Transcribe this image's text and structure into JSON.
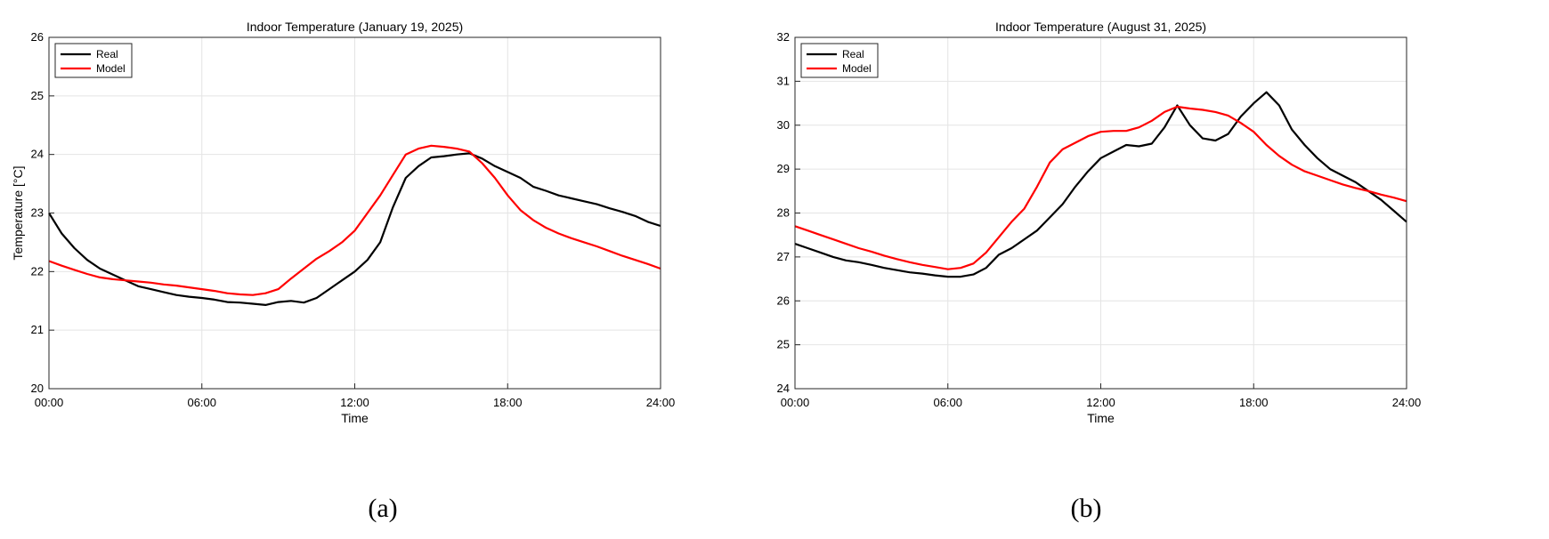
{
  "colors": {
    "real": "#000000",
    "model": "#ff0000",
    "grid": "#e4e4e4"
  },
  "chart_data": [
    {
      "type": "line",
      "caption": "(a)",
      "title": "Indoor Temperature (January 19, 2025)",
      "xlabel": "Time",
      "ylabel": "Temperature [°C]",
      "xlim": [
        0,
        24
      ],
      "ylim": [
        20,
        26
      ],
      "xticks": [
        0,
        6,
        12,
        18,
        24
      ],
      "xtick_labels": [
        "00:00",
        "06:00",
        "12:00",
        "18:00",
        "24:00"
      ],
      "yticks": [
        20,
        21,
        22,
        23,
        24,
        25,
        26
      ],
      "ytick_labels": [
        "20",
        "21",
        "22",
        "23",
        "24",
        "25",
        "26"
      ],
      "grid": true,
      "legend_position": "top-left",
      "series": [
        {
          "name": "Real",
          "color": "#000000",
          "x": [
            0,
            0.5,
            1,
            1.5,
            2,
            2.5,
            3,
            3.5,
            4,
            4.5,
            5,
            5.5,
            6,
            6.5,
            7,
            7.5,
            8,
            8.5,
            9,
            9.5,
            10,
            10.5,
            11,
            11.5,
            12,
            12.5,
            13,
            13.5,
            14,
            14.5,
            15,
            15.5,
            16,
            16.5,
            17,
            17.5,
            18,
            18.5,
            19,
            19.5,
            20,
            20.5,
            21,
            21.5,
            22,
            22.5,
            23,
            23.5,
            24
          ],
          "y": [
            23.0,
            22.65,
            22.4,
            22.2,
            22.05,
            21.95,
            21.85,
            21.75,
            21.7,
            21.65,
            21.6,
            21.57,
            21.55,
            21.52,
            21.48,
            21.47,
            21.45,
            21.43,
            21.48,
            21.5,
            21.47,
            21.55,
            21.7,
            21.85,
            22.0,
            22.2,
            22.5,
            23.1,
            23.6,
            23.8,
            23.95,
            23.97,
            24.0,
            24.02,
            23.93,
            23.8,
            23.7,
            23.6,
            23.45,
            23.38,
            23.3,
            23.25,
            23.2,
            23.15,
            23.08,
            23.02,
            22.95,
            22.85,
            22.78
          ]
        },
        {
          "name": "Model",
          "color": "#ff0000",
          "x": [
            0,
            0.5,
            1,
            1.5,
            2,
            2.5,
            3,
            3.5,
            4,
            4.5,
            5,
            5.5,
            6,
            6.5,
            7,
            7.5,
            8,
            8.5,
            9,
            9.5,
            10,
            10.5,
            11,
            11.5,
            12,
            12.5,
            13,
            13.5,
            14,
            14.5,
            15,
            15.5,
            16,
            16.5,
            17,
            17.5,
            18,
            18.5,
            19,
            19.5,
            20,
            20.5,
            21,
            21.5,
            22,
            22.5,
            23,
            23.5,
            24
          ],
          "y": [
            22.18,
            22.1,
            22.03,
            21.96,
            21.9,
            21.87,
            21.85,
            21.83,
            21.81,
            21.78,
            21.76,
            21.73,
            21.7,
            21.67,
            21.63,
            21.61,
            21.6,
            21.63,
            21.7,
            21.88,
            22.05,
            22.22,
            22.35,
            22.5,
            22.7,
            23.0,
            23.3,
            23.65,
            24.0,
            24.1,
            24.15,
            24.13,
            24.1,
            24.05,
            23.85,
            23.6,
            23.3,
            23.05,
            22.88,
            22.75,
            22.65,
            22.57,
            22.5,
            22.43,
            22.35,
            22.27,
            22.2,
            22.13,
            22.05
          ]
        }
      ]
    },
    {
      "type": "line",
      "caption": "(b)",
      "title": "Indoor Temperature (August 31, 2025)",
      "xlabel": "Time",
      "ylabel": "Temperature [°C]",
      "xlim": [
        0,
        24
      ],
      "ylim": [
        24,
        32
      ],
      "xticks": [
        0,
        6,
        12,
        18,
        24
      ],
      "xtick_labels": [
        "00:00",
        "06:00",
        "12:00",
        "18:00",
        "24:00"
      ],
      "yticks": [
        24,
        25,
        26,
        27,
        28,
        29,
        30,
        31,
        32
      ],
      "ytick_labels": [
        "24",
        "25",
        "26",
        "27",
        "28",
        "29",
        "30",
        "31",
        "32"
      ],
      "grid": true,
      "legend_position": "top-left",
      "series": [
        {
          "name": "Real",
          "color": "#000000",
          "x": [
            0,
            0.5,
            1,
            1.5,
            2,
            2.5,
            3,
            3.5,
            4,
            4.5,
            5,
            5.5,
            6,
            6.5,
            7,
            7.5,
            8,
            8.5,
            9,
            9.5,
            10,
            10.5,
            11,
            11.5,
            12,
            12.5,
            13,
            13.5,
            14,
            14.5,
            15,
            15.5,
            16,
            16.5,
            17,
            17.5,
            18,
            18.5,
            19,
            19.5,
            20,
            20.5,
            21,
            21.5,
            22,
            22.5,
            23,
            23.5,
            24
          ],
          "y": [
            27.3,
            27.2,
            27.1,
            27.0,
            26.92,
            26.88,
            26.82,
            26.75,
            26.7,
            26.65,
            26.62,
            26.58,
            26.55,
            26.55,
            26.6,
            26.75,
            27.05,
            27.2,
            27.4,
            27.6,
            27.9,
            28.2,
            28.6,
            28.95,
            29.25,
            29.4,
            29.55,
            29.52,
            29.58,
            29.95,
            30.45,
            30.0,
            29.7,
            29.65,
            29.8,
            30.2,
            30.5,
            30.75,
            30.45,
            29.9,
            29.55,
            29.25,
            29.0,
            28.85,
            28.7,
            28.5,
            28.3,
            28.05,
            27.8
          ]
        },
        {
          "name": "Model",
          "color": "#ff0000",
          "x": [
            0,
            0.5,
            1,
            1.5,
            2,
            2.5,
            3,
            3.5,
            4,
            4.5,
            5,
            5.5,
            6,
            6.5,
            7,
            7.5,
            8,
            8.5,
            9,
            9.5,
            10,
            10.5,
            11,
            11.5,
            12,
            12.5,
            13,
            13.5,
            14,
            14.5,
            15,
            15.5,
            16,
            16.5,
            17,
            17.5,
            18,
            18.5,
            19,
            19.5,
            20,
            20.5,
            21,
            21.5,
            22,
            22.5,
            23,
            23.5,
            24
          ],
          "y": [
            27.7,
            27.6,
            27.5,
            27.4,
            27.3,
            27.2,
            27.12,
            27.03,
            26.95,
            26.88,
            26.82,
            26.77,
            26.72,
            26.75,
            26.85,
            27.1,
            27.45,
            27.8,
            28.1,
            28.6,
            29.15,
            29.45,
            29.6,
            29.75,
            29.85,
            29.87,
            29.87,
            29.95,
            30.1,
            30.3,
            30.42,
            30.38,
            30.35,
            30.3,
            30.22,
            30.05,
            29.85,
            29.55,
            29.3,
            29.1,
            28.95,
            28.85,
            28.75,
            28.65,
            28.57,
            28.5,
            28.42,
            28.35,
            28.27
          ]
        }
      ]
    }
  ]
}
